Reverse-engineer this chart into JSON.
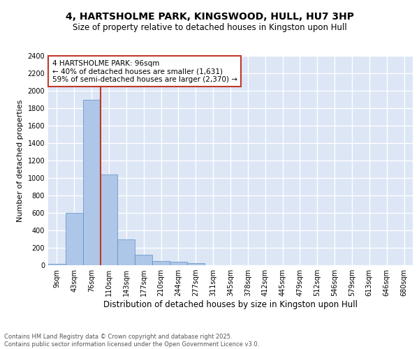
{
  "title": "4, HARTSHOLME PARK, KINGSWOOD, HULL, HU7 3HP",
  "subtitle": "Size of property relative to detached houses in Kingston upon Hull",
  "xlabel": "Distribution of detached houses by size in Kingston upon Hull",
  "ylabel": "Number of detached properties",
  "categories": [
    "9sqm",
    "43sqm",
    "76sqm",
    "110sqm",
    "143sqm",
    "177sqm",
    "210sqm",
    "244sqm",
    "277sqm",
    "311sqm",
    "345sqm",
    "378sqm",
    "412sqm",
    "445sqm",
    "479sqm",
    "512sqm",
    "546sqm",
    "579sqm",
    "613sqm",
    "646sqm",
    "680sqm"
  ],
  "values": [
    15,
    600,
    1900,
    1040,
    295,
    120,
    50,
    40,
    25,
    0,
    0,
    0,
    0,
    0,
    0,
    0,
    0,
    0,
    0,
    0,
    0
  ],
  "bar_color": "#aec6e8",
  "bar_edge_color": "#5a8fc2",
  "background_color": "#dce6f5",
  "grid_color": "#ffffff",
  "vline_color": "#c0392b",
  "annotation_box_text": "4 HARTSHOLME PARK: 96sqm\n← 40% of detached houses are smaller (1,631)\n59% of semi-detached houses are larger (2,370) →",
  "footer_text": "Contains HM Land Registry data © Crown copyright and database right 2025.\nContains public sector information licensed under the Open Government Licence v3.0.",
  "ylim": [
    0,
    2400
  ],
  "yticks": [
    0,
    200,
    400,
    600,
    800,
    1000,
    1200,
    1400,
    1600,
    1800,
    2000,
    2200,
    2400
  ],
  "title_fontsize": 10,
  "subtitle_fontsize": 8.5,
  "xlabel_fontsize": 8.5,
  "ylabel_fontsize": 8,
  "tick_fontsize": 7,
  "annotation_fontsize": 7.5,
  "footer_fontsize": 6
}
